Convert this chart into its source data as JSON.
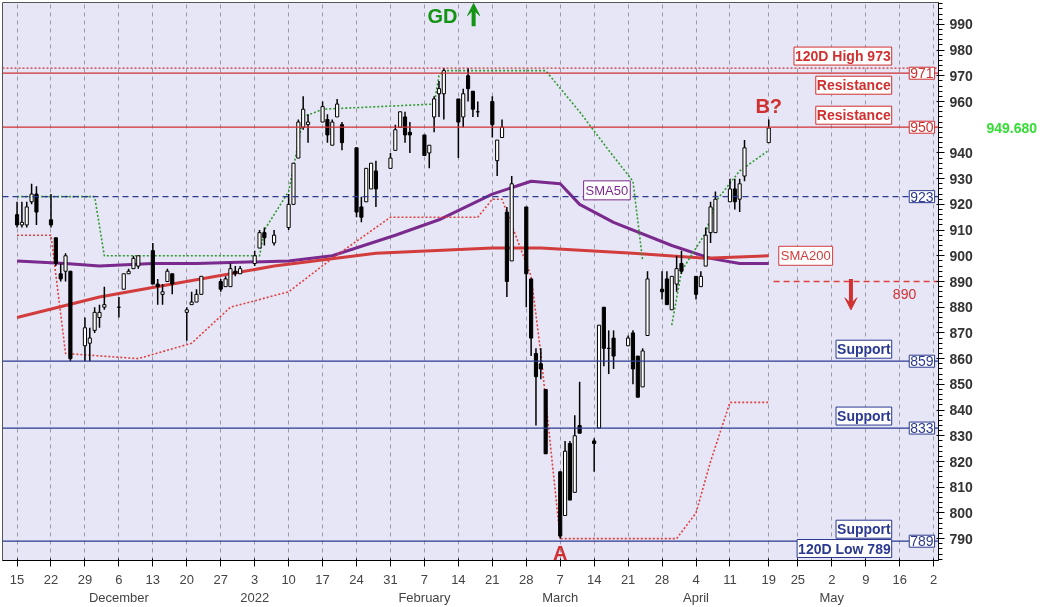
{
  "chart_data": {
    "type": "candlestick",
    "x": [
      "2021-11-15",
      "2021-11-16",
      "2021-11-17",
      "2021-11-18",
      "2021-11-19",
      "2021-11-22",
      "2021-11-23",
      "2021-11-24",
      "2021-11-25",
      "2021-11-26",
      "2021-11-29",
      "2021-11-30",
      "2021-12-01",
      "2021-12-02",
      "2021-12-03",
      "2021-12-06",
      "2021-12-07",
      "2021-12-08",
      "2021-12-09",
      "2021-12-10",
      "2021-12-13",
      "2021-12-14",
      "2021-12-15",
      "2021-12-16",
      "2021-12-17",
      "2021-12-20",
      "2021-12-21",
      "2021-12-22",
      "2021-12-23",
      "2021-12-27",
      "2021-12-28",
      "2021-12-29",
      "2021-12-30",
      "2021-12-31",
      "2022-01-03",
      "2022-01-04",
      "2022-01-05",
      "2022-01-07",
      "2022-01-10",
      "2022-01-11",
      "2022-01-12",
      "2022-01-13",
      "2022-01-14",
      "2022-01-17",
      "2022-01-18",
      "2022-01-19",
      "2022-01-20",
      "2022-01-21",
      "2022-01-24",
      "2022-01-25",
      "2022-01-26",
      "2022-01-27",
      "2022-01-28",
      "2022-01-31",
      "2022-02-01",
      "2022-02-02",
      "2022-02-03",
      "2022-02-04",
      "2022-02-07",
      "2022-02-08",
      "2022-02-09",
      "2022-02-10",
      "2022-02-11",
      "2022-02-14",
      "2022-02-15",
      "2022-02-16",
      "2022-02-17",
      "2022-02-18",
      "2022-02-21",
      "2022-02-22",
      "2022-02-23",
      "2022-02-24",
      "2022-02-25",
      "2022-02-28",
      "2022-03-01",
      "2022-03-02",
      "2022-03-03",
      "2022-03-04",
      "2022-03-07",
      "2022-03-08",
      "2022-03-09",
      "2022-03-10",
      "2022-03-11",
      "2022-03-14",
      "2022-03-15",
      "2022-03-16",
      "2022-03-17",
      "2022-03-18",
      "2022-03-21",
      "2022-03-22",
      "2022-03-23",
      "2022-03-24",
      "2022-03-25",
      "2022-03-28",
      "2022-03-29",
      "2022-03-30",
      "2022-03-31",
      "2022-04-01",
      "2022-04-04",
      "2022-04-05",
      "2022-04-06",
      "2022-04-07",
      "2022-04-08",
      "2022-04-11",
      "2022-04-12",
      "2022-04-13",
      "2022-04-14",
      "2022-04-19"
    ],
    "ohlc": [
      [
        916,
        921,
        911,
        912
      ],
      [
        912,
        921,
        911,
        913
      ],
      [
        912,
        921,
        911,
        919
      ],
      [
        921,
        928,
        920,
        924
      ],
      [
        924,
        927,
        912,
        917
      ],
      [
        914,
        924,
        911,
        912
      ],
      [
        907,
        907,
        896,
        897
      ],
      [
        893,
        897,
        890,
        891
      ],
      [
        894,
        901,
        890,
        900
      ],
      [
        894,
        894,
        859,
        860
      ],
      [
        865,
        876,
        859,
        872
      ],
      [
        866,
        872,
        859,
        868
      ],
      [
        871,
        880,
        870,
        878
      ],
      [
        876,
        881,
        872,
        878
      ],
      [
        880,
        888,
        879,
        881
      ],
      [
        880,
        884,
        876,
        880
      ],
      [
        887,
        893,
        887,
        893
      ],
      [
        893,
        895,
        893,
        894
      ],
      [
        895,
        900,
        895,
        899
      ],
      [
        896,
        900,
        895,
        900
      ],
      [
        902,
        905,
        889,
        889
      ],
      [
        889,
        891,
        881,
        888
      ],
      [
        885,
        889,
        881,
        886
      ],
      [
        890,
        895,
        890,
        894
      ],
      [
        893,
        893,
        885,
        889
      ],
      [
        878,
        880,
        867,
        879
      ],
      [
        881,
        886,
        881,
        882
      ],
      [
        882,
        887,
        882,
        885
      ],
      [
        885,
        892,
        885,
        892
      ],
      [
        890,
        891,
        886,
        887
      ],
      [
        888,
        892,
        888,
        891
      ],
      [
        888,
        897,
        888,
        895
      ],
      [
        894,
        896,
        892,
        893
      ],
      [
        893,
        896,
        893,
        895
      ],
      [
        897,
        902,
        896,
        900
      ],
      [
        903,
        910,
        903,
        909
      ],
      [
        909,
        911,
        904,
        907
      ],
      [
        905,
        910,
        904,
        908
      ],
      [
        911,
        924,
        910,
        920
      ],
      [
        920,
        936,
        920,
        936
      ],
      [
        938,
        953,
        938,
        952
      ],
      [
        950,
        962,
        949,
        957
      ],
      [
        951,
        955,
        944,
        952
      ],
      [
        952,
        960,
        952,
        958
      ],
      [
        953,
        955,
        944,
        947
      ],
      [
        943,
        953,
        943,
        952
      ],
      [
        954,
        961,
        954,
        959
      ],
      [
        951,
        952,
        941,
        944
      ],
      [
        942,
        942,
        915,
        917
      ],
      [
        919,
        923,
        913,
        915
      ],
      [
        921,
        934,
        921,
        934
      ],
      [
        926,
        936,
        926,
        936
      ],
      [
        933,
        937,
        919,
        926
      ],
      [
        934,
        940,
        934,
        938
      ],
      [
        941,
        951,
        941,
        949
      ],
      [
        950,
        956,
        950,
        956
      ],
      [
        954,
        956,
        944,
        947
      ],
      [
        948,
        952,
        940,
        947
      ],
      [
        947,
        947,
        939,
        939
      ],
      [
        940,
        943,
        934,
        943
      ],
      [
        954,
        962,
        948,
        961
      ],
      [
        963,
        968,
        954,
        965
      ],
      [
        963,
        973,
        953,
        972
      ],
      [
        961,
        961,
        938,
        952
      ],
      [
        954,
        965,
        950,
        963
      ],
      [
        970,
        973,
        960,
        965
      ],
      [
        964,
        964,
        954,
        957
      ],
      [
        956,
        960,
        954,
        956
      ],
      [
        960,
        962,
        946,
        951
      ],
      [
        937,
        945,
        931,
        945
      ],
      [
        946,
        953,
        946,
        950
      ],
      [
        917,
        919,
        884,
        890
      ],
      [
        898,
        931,
        898,
        928
      ],
      [
        919,
        919,
        880,
        893
      ],
      [
        891,
        891,
        861,
        868
      ],
      [
        862,
        864,
        834,
        853
      ],
      [
        858,
        864,
        852,
        856
      ],
      [
        848,
        848,
        823,
        823
      ],
      [
        816,
        816,
        790,
        791
      ],
      [
        799,
        828,
        799,
        824
      ],
      [
        827,
        828,
        805,
        805
      ],
      [
        808,
        838,
        808,
        830
      ],
      [
        834,
        851,
        831,
        831
      ],
      [
        828,
        829,
        816,
        827
      ],
      [
        833,
        873,
        833,
        873
      ],
      [
        880,
        880,
        857,
        864
      ],
      [
        864,
        871,
        854,
        864
      ],
      [
        868,
        871,
        856,
        861
      ],
      [
        865,
        869,
        865,
        868
      ],
      [
        870,
        871,
        850,
        856
      ],
      [
        861,
        861,
        845,
        845
      ],
      [
        849,
        864,
        849,
        863
      ],
      [
        869,
        894,
        869,
        891
      ],
      [
        887,
        894,
        883,
        886
      ],
      [
        891,
        894,
        881,
        881
      ],
      [
        879,
        892,
        879,
        892
      ],
      [
        889,
        900,
        886,
        895
      ],
      [
        897,
        902,
        893,
        894
      ],
      [
        892,
        892,
        883,
        885
      ],
      [
        888,
        894,
        888,
        892
      ],
      [
        896,
        911,
        896,
        908
      ],
      [
        909,
        921,
        905,
        919
      ],
      [
        909,
        925,
        909,
        922
      ],
      [
        921,
        930,
        921,
        926
      ],
      [
        926,
        930,
        918,
        921
      ],
      [
        922,
        930,
        917,
        928
      ],
      [
        931,
        945,
        929,
        942
      ],
      [
        944,
        953,
        944,
        949.68
      ]
    ],
    "series": [
      {
        "name": "SMA50",
        "type": "line",
        "color": "#7a2a8c",
        "x": [
          "2021-11-15",
          "2021-11-25",
          "2021-12-02",
          "2021-12-13",
          "2021-12-22",
          "2022-01-10",
          "2022-01-19",
          "2022-02-01",
          "2022-02-10",
          "2022-02-21",
          "2022-03-01",
          "2022-03-07",
          "2022-03-11",
          "2022-03-18",
          "2022-03-30",
          "2022-04-07",
          "2022-04-13",
          "2022-04-19"
        ],
        "values": [
          898,
          897,
          896,
          897,
          897,
          898,
          900,
          908,
          914,
          924,
          929,
          928,
          920,
          913,
          904,
          899,
          897,
          897
        ]
      },
      {
        "name": "SMA200",
        "type": "line",
        "color": "#d23c3c",
        "x": [
          "2021-11-15",
          "2021-12-02",
          "2021-12-17",
          "2022-01-07",
          "2022-01-28",
          "2022-02-21",
          "2022-03-03",
          "2022-03-22",
          "2022-04-06",
          "2022-04-19"
        ],
        "values": [
          876,
          884,
          889,
          896,
          901,
          903,
          903,
          901,
          899,
          900
        ]
      },
      {
        "type": "line",
        "color": "#2e9a2e",
        "line_style": "dotted",
        "x": [
          "2021-11-15",
          "2021-12-01",
          "2021-12-03",
          "2021-12-31",
          "2022-01-04",
          "2022-01-05",
          "2022-01-10",
          "2022-01-12",
          "2022-01-13",
          "2022-01-17",
          "2022-02-09",
          "2022-02-10",
          "2022-02-11",
          "2022-03-04",
          "2022-03-11",
          "2022-03-17",
          "2022-03-22",
          "2022-03-24",
          "2022-03-25",
          "2022-03-30",
          "2022-04-01",
          "2022-04-06",
          "2022-04-08",
          "2022-04-13",
          "2022-04-19"
        ],
        "values": [
          923,
          923,
          900,
          900,
          900,
          910,
          925,
          944,
          954,
          957,
          959,
          970,
          972,
          972,
          956,
          941,
          929,
          898,
          null,
          873,
          894,
          909,
          921,
          933,
          941
        ]
      },
      {
        "type": "line",
        "color": "#e04040",
        "line_style": "dotted",
        "x": [
          "2021-11-15",
          "2021-11-22",
          "2021-11-25",
          "2021-12-10",
          "2021-12-21",
          "2021-12-29",
          "2022-01-10",
          "2022-01-19",
          "2022-01-31",
          "2022-02-18",
          "2022-02-21",
          "2022-02-23",
          "2022-03-01",
          "2022-03-03",
          "2022-03-07",
          "2022-03-25",
          "2022-03-31",
          "2022-04-04",
          "2022-04-07",
          "2022-04-11",
          "2022-04-19"
        ],
        "values": [
          908,
          908,
          862,
          860,
          866,
          880,
          886,
          899,
          915,
          915,
          922,
          922,
          892,
          862,
          790,
          790,
          790,
          800,
          820,
          843,
          843
        ]
      },
      {
        "type": "line",
        "color": "#e04040",
        "line_style": "dashed",
        "x": [
          "2022-04-20",
          "2022-05-24"
        ],
        "values": [
          890,
          890
        ]
      }
    ],
    "xlim": [
      "2021-11-12",
      "2022-05-24"
    ],
    "ylim": [
      781.5,
      998.5
    ],
    "xticks": [
      {
        "value": "2021-11-15",
        "label": "15"
      },
      {
        "value": "2021-11-22",
        "label": "22"
      },
      {
        "value": "2021-11-29",
        "label": "29"
      },
      {
        "value": "2021-12-06",
        "label": "6\nDecember"
      },
      {
        "value": "2021-12-13",
        "label": "13"
      },
      {
        "value": "2021-12-20",
        "label": "20"
      },
      {
        "value": "2021-12-27",
        "label": "27"
      },
      {
        "value": "2022-01-03",
        "label": "3\n2022"
      },
      {
        "value": "2022-01-10",
        "label": "10"
      },
      {
        "value": "2022-01-17",
        "label": "17"
      },
      {
        "value": "2022-01-24",
        "label": "24"
      },
      {
        "value": "2022-01-31",
        "label": "31"
      },
      {
        "value": "2022-02-07",
        "label": "7\nFebruary"
      },
      {
        "value": "2022-02-14",
        "label": "14"
      },
      {
        "value": "2022-02-21",
        "label": "21"
      },
      {
        "value": "2022-02-28",
        "label": "28"
      },
      {
        "value": "2022-03-07",
        "label": "7\nMarch"
      },
      {
        "value": "2022-03-14",
        "label": "14"
      },
      {
        "value": "2022-03-21",
        "label": "21"
      },
      {
        "value": "2022-03-28",
        "label": "28"
      },
      {
        "value": "2022-04-04",
        "label": "4\nApril"
      },
      {
        "value": "2022-04-11",
        "label": "11"
      },
      {
        "value": "2022-04-19",
        "label": "19"
      },
      {
        "value": "2022-04-25",
        "label": "25"
      },
      {
        "value": "2022-05-02",
        "label": "2\nMay"
      },
      {
        "value": "2022-05-09",
        "label": "9"
      },
      {
        "value": "2022-05-16",
        "label": "16"
      },
      {
        "value": "2022-05-23",
        "label": "2"
      }
    ],
    "yticks": [
      790,
      800,
      810,
      820,
      830,
      840,
      850,
      860,
      870,
      880,
      890,
      900,
      910,
      920,
      930,
      940,
      960,
      970,
      980,
      990
    ],
    "grid": "x",
    "ref_lines": [
      {
        "axis": "y",
        "value": 973,
        "label": "120D High 973",
        "color": "#d03030",
        "line_style": "dotted"
      },
      {
        "axis": "y",
        "value": 971,
        "label": "Resistance",
        "color": "#d03030",
        "line_style": "solid"
      },
      {
        "axis": "y",
        "value": 950,
        "label": "Resistance",
        "color": "#d03030",
        "line_style": "solid"
      },
      {
        "axis": "y",
        "value": 923,
        "label": null,
        "color": "#2b3990",
        "line_style": "dashed"
      },
      {
        "axis": "y",
        "value": 859,
        "label": "Support",
        "color": "#2b3990",
        "line_style": "solid"
      },
      {
        "axis": "y",
        "value": 833,
        "label": "Support",
        "color": "#2b3990",
        "line_style": "solid"
      },
      {
        "axis": "y",
        "value": 789,
        "label": "Support",
        "color": "#2b3990",
        "line_style": "solid"
      }
    ],
    "annotations": [
      "GD",
      "120D Low 789",
      {
        "text": "B?",
        "x": "2022-04-19",
        "y": 953
      },
      {
        "text": "A",
        "x": "2022-03-07",
        "y": 790
      },
      {
        "text": "890",
        "x": "2022-05-17",
        "y": 890
      },
      {
        "text": "971",
        "y": 971
      },
      {
        "text": "950",
        "y": 950
      },
      {
        "text": "923",
        "y": 923
      },
      {
        "text": "859",
        "y": 859
      },
      {
        "text": "833",
        "y": 833
      },
      {
        "text": "789",
        "y": 789
      },
      "949.680"
    ]
  }
}
